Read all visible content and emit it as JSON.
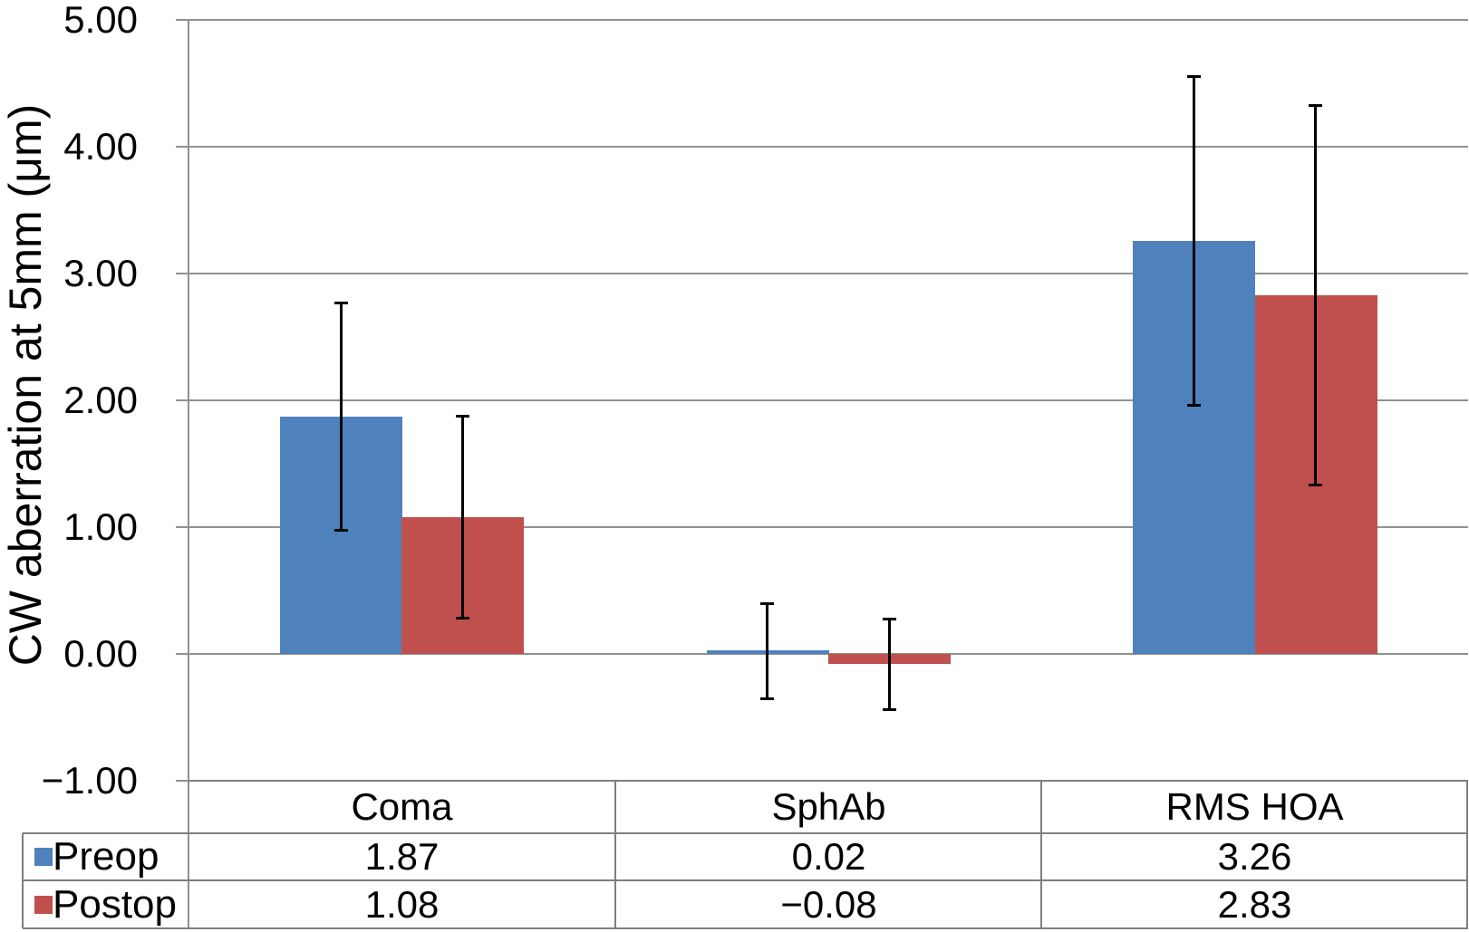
{
  "chart_data": {
    "type": "bar",
    "title": "",
    "ylabel": "CW aberration at 5mm (μm)",
    "xlabel": "",
    "categories": [
      "Coma",
      "SphAb",
      "RMS HOA"
    ],
    "series": [
      {
        "name": "Preop",
        "color": "#4F81BD",
        "values": [
          1.87,
          0.02,
          3.26
        ],
        "errors": [
          0.9,
          0.38,
          1.3
        ],
        "display_values": [
          "1.87",
          "0.02",
          "3.26"
        ]
      },
      {
        "name": "Postop",
        "color": "#C0504D",
        "values": [
          1.08,
          -0.08,
          2.83
        ],
        "errors": [
          0.8,
          0.36,
          1.5
        ],
        "display_values": [
          "1.08",
          "−0.08",
          "2.83"
        ]
      }
    ],
    "ylim": [
      -1,
      5
    ],
    "y_tick_values": [
      5,
      4,
      3,
      2,
      1,
      0,
      -1
    ],
    "y_tick_labels": [
      "5.00",
      "4.00",
      "3.00",
      "2.00",
      "1.00",
      "0.00",
      "−1.00"
    ],
    "grid": true,
    "error_bar_color": "#000000",
    "gridline_color": "#919191",
    "legend_position": "table-left",
    "data_table_shown": true
  }
}
